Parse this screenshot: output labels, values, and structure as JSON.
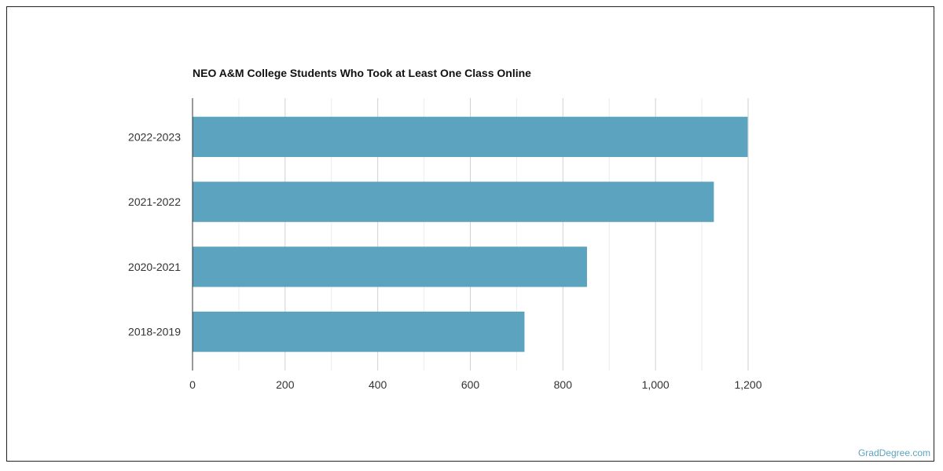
{
  "chart_data": {
    "type": "bar",
    "orientation": "horizontal",
    "title": "NEO A&M College Students Who Took at Least One Class Online",
    "categories": [
      "2022-2023",
      "2021-2022",
      "2020-2021",
      "2018-2019"
    ],
    "values": [
      1199,
      1126,
      852,
      717
    ],
    "xlim": [
      0,
      1200
    ],
    "xticks": [
      0,
      200,
      400,
      600,
      800,
      1000,
      1200
    ],
    "xtick_labels": [
      "0",
      "200",
      "400",
      "600",
      "800",
      "1,000",
      "1,200"
    ],
    "grid": true,
    "bar_color": "#5ba3bf",
    "xlabel": "",
    "ylabel": ""
  },
  "watermark": "GradDegree.com"
}
